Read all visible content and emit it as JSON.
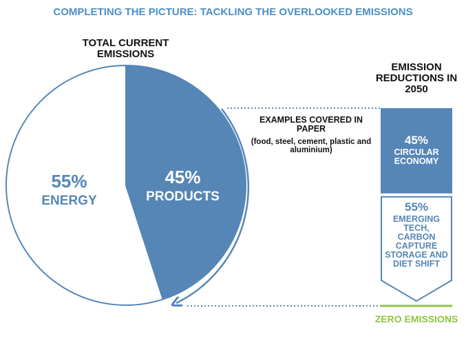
{
  "title": "COMPLETING THE PICTURE: TACKLING THE OVERLOOKED EMISSIONS",
  "chart_data": [
    {
      "type": "pie",
      "title": "TOTAL CURRENT EMISSIONS",
      "categories": [
        "ENERGY",
        "PRODUCTS"
      ],
      "values": [
        55,
        45
      ],
      "value_labels": [
        "55%",
        "45%"
      ],
      "colors": [
        "#ffffff",
        "#5586b6"
      ]
    },
    {
      "type": "bar",
      "title": "EMISSION REDUCTIONS IN 2050",
      "categories": [
        "CIRCULAR ECONOMY",
        "EMERGING TECH, CARBON CAPTURE STORAGE AND DIET SHIFT"
      ],
      "values": [
        45,
        55
      ],
      "value_labels": [
        "45%",
        "55%"
      ],
      "colors": [
        "#5586b6",
        "#ffffff"
      ],
      "annotation": "EXAMPLES COVERED IN PAPER",
      "annotation_detail": "(food, steel, cement, plastic and aluminium)",
      "baseline_label": "ZERO EMISSIONS",
      "baseline_color": "#8dc63f"
    }
  ]
}
